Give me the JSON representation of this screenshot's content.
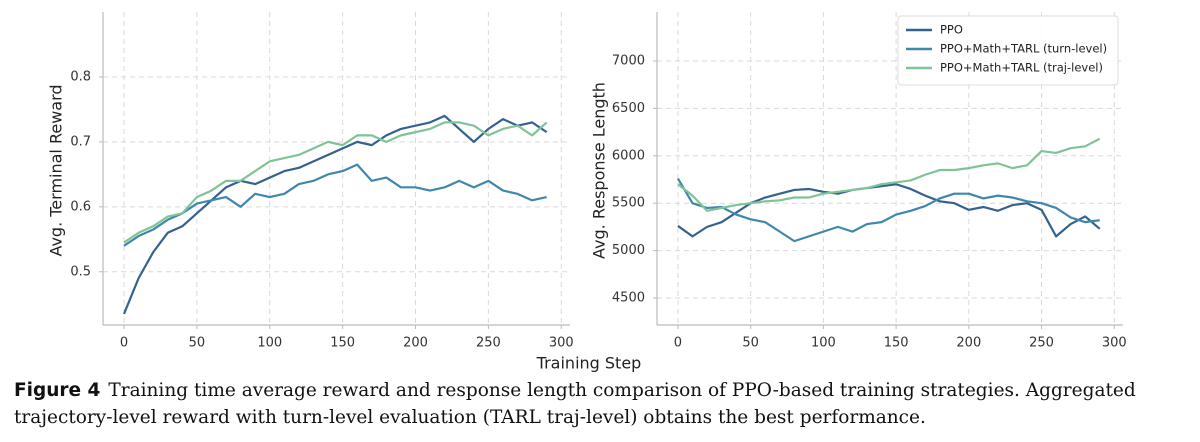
{
  "chart_data": [
    {
      "type": "line",
      "ylabel": "Avg. Terminal Reward",
      "x": [
        0,
        10,
        20,
        30,
        40,
        50,
        60,
        70,
        80,
        90,
        100,
        110,
        120,
        130,
        140,
        150,
        160,
        170,
        180,
        190,
        200,
        210,
        220,
        230,
        240,
        250,
        260,
        270,
        280,
        290
      ],
      "series": [
        {
          "color": "#34628f",
          "values": [
            0.435,
            0.49,
            0.53,
            0.56,
            0.57,
            0.59,
            0.61,
            0.63,
            0.64,
            0.635,
            0.645,
            0.655,
            0.66,
            0.67,
            0.68,
            0.69,
            0.7,
            0.695,
            0.71,
            0.72,
            0.725,
            0.73,
            0.74,
            0.72,
            0.7,
            0.72,
            0.735,
            0.725,
            0.73,
            0.715
          ]
        },
        {
          "color": "#3f87ae",
          "values": [
            0.54,
            0.555,
            0.565,
            0.58,
            0.59,
            0.605,
            0.61,
            0.615,
            0.6,
            0.62,
            0.615,
            0.62,
            0.635,
            0.64,
            0.65,
            0.655,
            0.665,
            0.64,
            0.645,
            0.63,
            0.63,
            0.625,
            0.63,
            0.64,
            0.63,
            0.64,
            0.625,
            0.62,
            0.61,
            0.615
          ]
        },
        {
          "color": "#7fc397",
          "values": [
            0.545,
            0.56,
            0.57,
            0.585,
            0.59,
            0.615,
            0.625,
            0.64,
            0.64,
            0.655,
            0.67,
            0.675,
            0.68,
            0.69,
            0.7,
            0.695,
            0.71,
            0.71,
            0.7,
            0.71,
            0.715,
            0.72,
            0.73,
            0.73,
            0.725,
            0.71,
            0.72,
            0.725,
            0.71,
            0.73
          ]
        }
      ],
      "xlim": [
        -14.4,
        306
      ],
      "ylim": [
        0.418,
        0.9
      ],
      "xticks": [
        0,
        50,
        100,
        150,
        200,
        250,
        300
      ],
      "yticks": [
        0.5,
        0.6,
        0.7,
        0.8
      ],
      "grid": true
    },
    {
      "type": "line",
      "ylabel": "Avg. Response Length",
      "x": [
        0,
        10,
        20,
        30,
        40,
        50,
        60,
        70,
        80,
        90,
        100,
        110,
        120,
        130,
        140,
        150,
        160,
        170,
        180,
        190,
        200,
        210,
        220,
        230,
        240,
        250,
        260,
        270,
        280,
        290
      ],
      "series": [
        {
          "name": "PPO",
          "color": "#34628f",
          "values": [
            5260,
            5150,
            5250,
            5300,
            5400,
            5500,
            5560,
            5600,
            5640,
            5650,
            5620,
            5600,
            5640,
            5660,
            5680,
            5700,
            5650,
            5580,
            5520,
            5500,
            5430,
            5460,
            5420,
            5480,
            5500,
            5430,
            5150,
            5280,
            5360,
            5230
          ]
        },
        {
          "name": "PPO+Math+TARL (turn-level)",
          "color": "#3f87ae",
          "values": [
            5760,
            5500,
            5450,
            5460,
            5380,
            5330,
            5300,
            5200,
            5100,
            5150,
            5200,
            5250,
            5200,
            5280,
            5300,
            5380,
            5420,
            5470,
            5550,
            5600,
            5600,
            5550,
            5580,
            5560,
            5520,
            5500,
            5450,
            5350,
            5300,
            5320
          ]
        },
        {
          "name": "PPO+Math+TARL (traj-level)",
          "color": "#7fc397",
          "values": [
            5700,
            5580,
            5420,
            5450,
            5480,
            5500,
            5520,
            5530,
            5560,
            5560,
            5600,
            5620,
            5640,
            5660,
            5700,
            5720,
            5740,
            5800,
            5850,
            5850,
            5870,
            5900,
            5920,
            5870,
            5900,
            6050,
            6030,
            6080,
            6100,
            6180
          ]
        }
      ],
      "xlim": [
        -14.4,
        306
      ],
      "ylim": [
        4215,
        7517
      ],
      "xticks": [
        0,
        50,
        100,
        150,
        200,
        250,
        300
      ],
      "yticks": [
        4500,
        5000,
        5500,
        6000,
        6500,
        7000
      ],
      "grid": true,
      "legend": "upper right"
    }
  ],
  "xlabel": "Training Step",
  "caption": {
    "label": "Figure 4",
    "text": "Training time average reward and response length comparison of PPO-based training strategies. Aggregated trajectory-level reward with turn-level evaluation (TARL traj-level) obtains the best performance."
  }
}
